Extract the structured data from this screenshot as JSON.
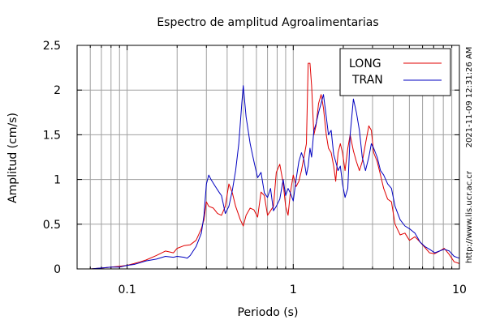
{
  "chart_data": {
    "type": "line",
    "title": "Espectro de amplitud Agroalimentarias",
    "xlabel": "Periodo (s)",
    "ylabel": "Amplitud (cm/s)",
    "xscale": "log",
    "xlim": [
      0.05,
      10
    ],
    "ylim": [
      0,
      2.5
    ],
    "grid": true,
    "legend_position": "top-right",
    "x_ticks": [
      {
        "value": 0.1,
        "label": "0.1"
      },
      {
        "value": 1,
        "label": "1"
      },
      {
        "value": 10,
        "label": "10"
      }
    ],
    "y_ticks": [
      {
        "value": 0,
        "label": "0"
      },
      {
        "value": 0.5,
        "label": "0.5"
      },
      {
        "value": 1,
        "label": "1"
      },
      {
        "value": 1.5,
        "label": "1.5"
      },
      {
        "value": 2,
        "label": "2"
      },
      {
        "value": 2.5,
        "label": "2.5"
      }
    ],
    "timestamp": "2021-11-09 12:31:26 AM",
    "source_url": "http://www.lis.ucr.ac.cr",
    "series": [
      {
        "name": "LONG",
        "color": "#e00000",
        "points": [
          [
            0.06,
            0.0
          ],
          [
            0.07,
            0.01
          ],
          [
            0.08,
            0.02
          ],
          [
            0.09,
            0.03
          ],
          [
            0.1,
            0.04
          ],
          [
            0.11,
            0.06
          ],
          [
            0.12,
            0.08
          ],
          [
            0.13,
            0.1
          ],
          [
            0.15,
            0.15
          ],
          [
            0.17,
            0.2
          ],
          [
            0.19,
            0.18
          ],
          [
            0.2,
            0.23
          ],
          [
            0.22,
            0.26
          ],
          [
            0.24,
            0.27
          ],
          [
            0.26,
            0.32
          ],
          [
            0.28,
            0.45
          ],
          [
            0.29,
            0.55
          ],
          [
            0.3,
            0.75
          ],
          [
            0.31,
            0.7
          ],
          [
            0.33,
            0.68
          ],
          [
            0.35,
            0.62
          ],
          [
            0.37,
            0.6
          ],
          [
            0.39,
            0.7
          ],
          [
            0.41,
            0.95
          ],
          [
            0.43,
            0.85
          ],
          [
            0.45,
            0.7
          ],
          [
            0.48,
            0.55
          ],
          [
            0.5,
            0.48
          ],
          [
            0.52,
            0.6
          ],
          [
            0.55,
            0.68
          ],
          [
            0.58,
            0.66
          ],
          [
            0.61,
            0.58
          ],
          [
            0.64,
            0.86
          ],
          [
            0.67,
            0.82
          ],
          [
            0.7,
            0.6
          ],
          [
            0.73,
            0.65
          ],
          [
            0.76,
            0.7
          ],
          [
            0.79,
            1.08
          ],
          [
            0.83,
            1.17
          ],
          [
            0.87,
            0.96
          ],
          [
            0.9,
            0.7
          ],
          [
            0.93,
            0.6
          ],
          [
            0.96,
            0.85
          ],
          [
            1.0,
            1.05
          ],
          [
            1.04,
            0.92
          ],
          [
            1.08,
            0.98
          ],
          [
            1.12,
            1.1
          ],
          [
            1.16,
            1.25
          ],
          [
            1.2,
            1.4
          ],
          [
            1.23,
            2.3
          ],
          [
            1.26,
            2.3
          ],
          [
            1.29,
            2.05
          ],
          [
            1.33,
            1.5
          ],
          [
            1.37,
            1.6
          ],
          [
            1.42,
            1.85
          ],
          [
            1.47,
            1.95
          ],
          [
            1.52,
            1.8
          ],
          [
            1.58,
            1.5
          ],
          [
            1.63,
            1.35
          ],
          [
            1.69,
            1.3
          ],
          [
            1.75,
            1.15
          ],
          [
            1.8,
            0.98
          ],
          [
            1.86,
            1.3
          ],
          [
            1.92,
            1.4
          ],
          [
            1.98,
            1.3
          ],
          [
            2.05,
            1.1
          ],
          [
            2.13,
            1.35
          ],
          [
            2.2,
            1.5
          ],
          [
            2.3,
            1.32
          ],
          [
            2.4,
            1.2
          ],
          [
            2.5,
            1.1
          ],
          [
            2.6,
            1.2
          ],
          [
            2.72,
            1.4
          ],
          [
            2.85,
            1.6
          ],
          [
            2.95,
            1.55
          ],
          [
            3.05,
            1.3
          ],
          [
            3.2,
            1.2
          ],
          [
            3.35,
            1.05
          ],
          [
            3.5,
            0.9
          ],
          [
            3.7,
            0.78
          ],
          [
            3.9,
            0.75
          ],
          [
            4.1,
            0.5
          ],
          [
            4.4,
            0.38
          ],
          [
            4.7,
            0.4
          ],
          [
            5.0,
            0.32
          ],
          [
            5.4,
            0.36
          ],
          [
            5.8,
            0.3
          ],
          [
            6.2,
            0.24
          ],
          [
            6.6,
            0.18
          ],
          [
            7.1,
            0.17
          ],
          [
            7.6,
            0.2
          ],
          [
            8.1,
            0.23
          ],
          [
            8.7,
            0.16
          ],
          [
            9.3,
            0.08
          ],
          [
            10.0,
            0.06
          ]
        ]
      },
      {
        "name": "TRAN",
        "color": "#0000c0",
        "points": [
          [
            0.06,
            0.0
          ],
          [
            0.07,
            0.01
          ],
          [
            0.08,
            0.02
          ],
          [
            0.09,
            0.02
          ],
          [
            0.1,
            0.04
          ],
          [
            0.11,
            0.05
          ],
          [
            0.12,
            0.07
          ],
          [
            0.13,
            0.09
          ],
          [
            0.15,
            0.11
          ],
          [
            0.17,
            0.14
          ],
          [
            0.19,
            0.13
          ],
          [
            0.2,
            0.14
          ],
          [
            0.22,
            0.13
          ],
          [
            0.23,
            0.12
          ],
          [
            0.24,
            0.15
          ],
          [
            0.26,
            0.25
          ],
          [
            0.28,
            0.4
          ],
          [
            0.29,
            0.6
          ],
          [
            0.3,
            0.95
          ],
          [
            0.31,
            1.05
          ],
          [
            0.32,
            1.0
          ],
          [
            0.34,
            0.92
          ],
          [
            0.36,
            0.85
          ],
          [
            0.37,
            0.82
          ],
          [
            0.39,
            0.62
          ],
          [
            0.41,
            0.7
          ],
          [
            0.43,
            0.88
          ],
          [
            0.45,
            1.1
          ],
          [
            0.47,
            1.4
          ],
          [
            0.49,
            1.85
          ],
          [
            0.5,
            2.05
          ],
          [
            0.52,
            1.7
          ],
          [
            0.55,
            1.4
          ],
          [
            0.58,
            1.2
          ],
          [
            0.61,
            1.02
          ],
          [
            0.64,
            1.08
          ],
          [
            0.67,
            0.85
          ],
          [
            0.7,
            0.8
          ],
          [
            0.73,
            0.9
          ],
          [
            0.76,
            0.65
          ],
          [
            0.79,
            0.7
          ],
          [
            0.83,
            0.78
          ],
          [
            0.87,
            1.0
          ],
          [
            0.9,
            0.82
          ],
          [
            0.93,
            0.9
          ],
          [
            0.96,
            0.85
          ],
          [
            1.0,
            0.76
          ],
          [
            1.04,
            1.0
          ],
          [
            1.08,
            1.2
          ],
          [
            1.12,
            1.3
          ],
          [
            1.16,
            1.22
          ],
          [
            1.2,
            1.05
          ],
          [
            1.23,
            1.15
          ],
          [
            1.26,
            1.35
          ],
          [
            1.29,
            1.25
          ],
          [
            1.33,
            1.55
          ],
          [
            1.37,
            1.62
          ],
          [
            1.42,
            1.75
          ],
          [
            1.47,
            1.85
          ],
          [
            1.52,
            1.95
          ],
          [
            1.58,
            1.7
          ],
          [
            1.63,
            1.5
          ],
          [
            1.69,
            1.55
          ],
          [
            1.75,
            1.28
          ],
          [
            1.8,
            1.2
          ],
          [
            1.86,
            1.1
          ],
          [
            1.92,
            1.15
          ],
          [
            1.98,
            0.95
          ],
          [
            2.05,
            0.8
          ],
          [
            2.13,
            0.9
          ],
          [
            2.2,
            1.5
          ],
          [
            2.3,
            1.9
          ],
          [
            2.4,
            1.75
          ],
          [
            2.5,
            1.55
          ],
          [
            2.6,
            1.25
          ],
          [
            2.72,
            1.1
          ],
          [
            2.85,
            1.25
          ],
          [
            2.95,
            1.4
          ],
          [
            3.05,
            1.35
          ],
          [
            3.2,
            1.25
          ],
          [
            3.35,
            1.1
          ],
          [
            3.5,
            1.05
          ],
          [
            3.7,
            0.95
          ],
          [
            3.9,
            0.9
          ],
          [
            4.1,
            0.7
          ],
          [
            4.4,
            0.55
          ],
          [
            4.7,
            0.48
          ],
          [
            5.0,
            0.45
          ],
          [
            5.4,
            0.4
          ],
          [
            5.8,
            0.3
          ],
          [
            6.2,
            0.25
          ],
          [
            6.6,
            0.22
          ],
          [
            7.1,
            0.18
          ],
          [
            7.6,
            0.2
          ],
          [
            8.1,
            0.22
          ],
          [
            8.7,
            0.2
          ],
          [
            9.3,
            0.14
          ],
          [
            10.0,
            0.12
          ]
        ]
      }
    ]
  }
}
